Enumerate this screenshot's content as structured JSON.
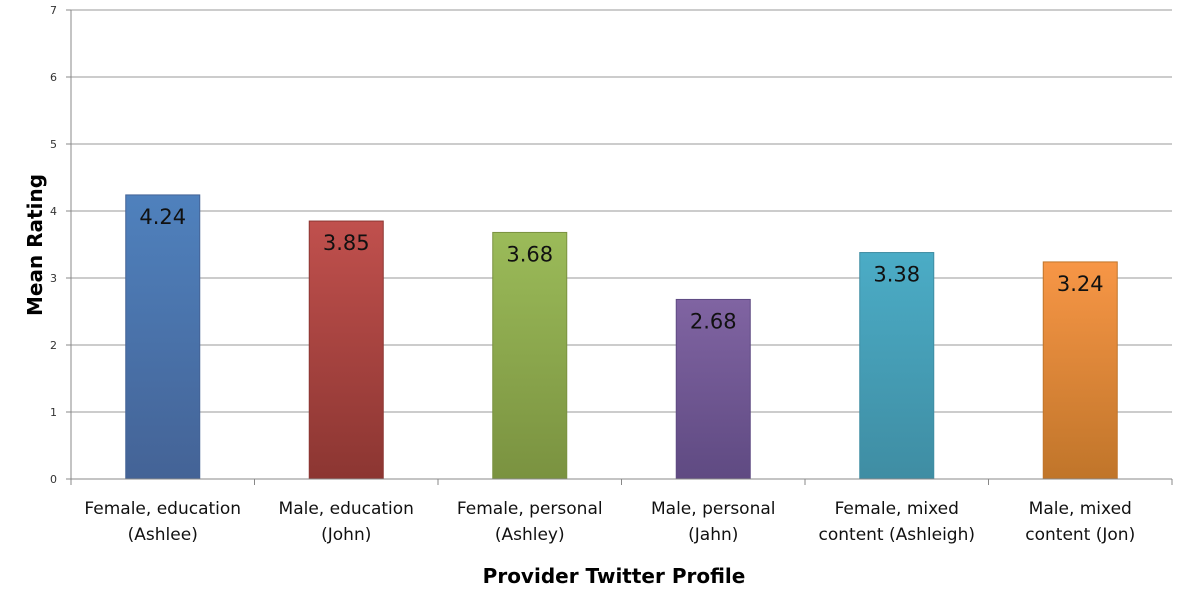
{
  "chart_data": {
    "type": "bar",
    "title": "",
    "xlabel": "Provider Twitter Profile",
    "ylabel": "Mean Rating",
    "ylim": [
      0,
      7
    ],
    "yticks": [
      0,
      1,
      2,
      3,
      4,
      5,
      6,
      7
    ],
    "grid": true,
    "categories": [
      [
        "Female, education",
        "(Ashlee)"
      ],
      [
        "Male, education",
        "(John)"
      ],
      [
        "Female, personal",
        "(Ashley)"
      ],
      [
        "Male, personal",
        "(Jahn)"
      ],
      [
        "Female, mixed",
        "content (Ashleigh)"
      ],
      [
        "Male, mixed",
        "content (Jon)"
      ]
    ],
    "values": [
      4.24,
      3.85,
      3.68,
      2.68,
      3.38,
      3.24
    ],
    "data_labels": [
      "4.24",
      "3.85",
      "3.68",
      "2.68",
      "3.38",
      "3.24"
    ],
    "colors": [
      "#4f81bd",
      "#c0504d",
      "#9bbb59",
      "#8064a2",
      "#4bacc6",
      "#f79646"
    ],
    "colors_dark": [
      "#446396",
      "#8c3632",
      "#7a9240",
      "#5f4a82",
      "#3f8da3",
      "#c0752a"
    ]
  }
}
